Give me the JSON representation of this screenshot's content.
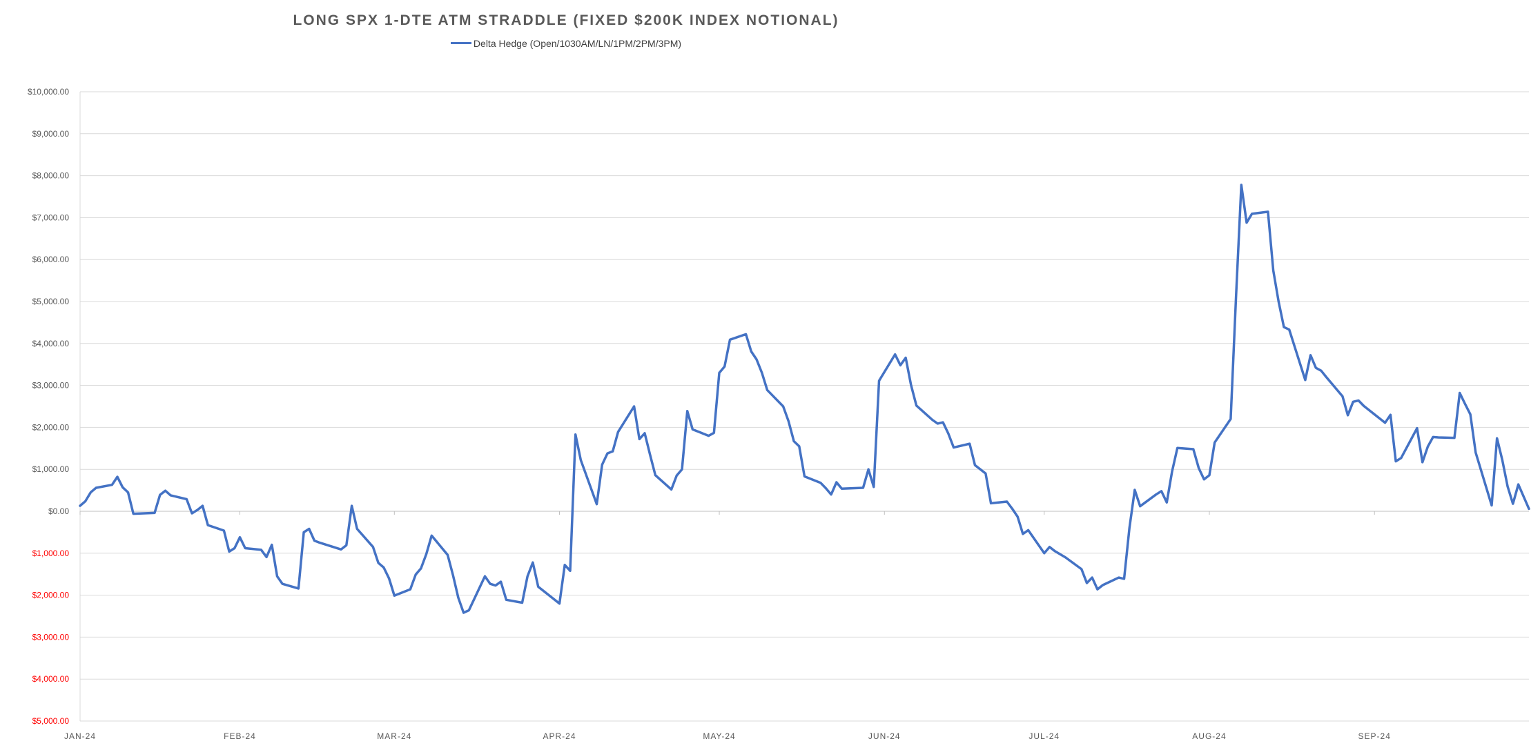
{
  "chart_data": {
    "type": "line",
    "title": "LONG SPX 1-DTE ATM STRADDLE (FIXED $200K INDEX NOTIONAL)",
    "legend_position": "top",
    "grid": true,
    "ylim": [
      -5000,
      10000
    ],
    "xlim": [
      "2024-01-02",
      "2024-09-30"
    ],
    "y_ticks": [
      10000,
      9000,
      8000,
      7000,
      6000,
      5000,
      4000,
      3000,
      2000,
      1000,
      0,
      -1000,
      -2000,
      -3000,
      -4000,
      -5000
    ],
    "y_tick_labels": [
      "$10,000.00",
      "$9,000.00",
      "$8,000.00",
      "$7,000.00",
      "$6,000.00",
      "$5,000.00",
      "$4,000.00",
      "$3,000.00",
      "$2,000.00",
      "$1,000.00",
      "$0.00",
      "$1,000.00",
      "$2,000.00",
      "$3,000.00",
      "$4,000.00",
      "$5,000.00"
    ],
    "positive_tick_color": "#595959",
    "negative_tick_color": "#FF0000",
    "x_ticks": [
      {
        "label": "JAN-24",
        "date": "2024-01-02"
      },
      {
        "label": "FEB-24",
        "date": "2024-02-01"
      },
      {
        "label": "MAR-24",
        "date": "2024-03-01"
      },
      {
        "label": "APR-24",
        "date": "2024-04-01"
      },
      {
        "label": "MAY-24",
        "date": "2024-05-01"
      },
      {
        "label": "JUN-24",
        "date": "2024-06-01"
      },
      {
        "label": "JUL-24",
        "date": "2024-07-01"
      },
      {
        "label": "AUG-24",
        "date": "2024-08-01"
      },
      {
        "label": "SEP-24",
        "date": "2024-09-01"
      }
    ],
    "series": [
      {
        "name": "Delta Hedge (Open/1030AM/LN/1PM/2PM/3PM)",
        "color": "#4472C4",
        "points": [
          [
            "2024-01-02",
            130
          ],
          [
            "2024-01-03",
            240
          ],
          [
            "2024-01-04",
            450
          ],
          [
            "2024-01-05",
            560
          ],
          [
            "2024-01-08",
            630
          ],
          [
            "2024-01-09",
            820
          ],
          [
            "2024-01-10",
            570
          ],
          [
            "2024-01-11",
            450
          ],
          [
            "2024-01-12",
            -60
          ],
          [
            "2024-01-16",
            -40
          ],
          [
            "2024-01-17",
            390
          ],
          [
            "2024-01-18",
            490
          ],
          [
            "2024-01-19",
            380
          ],
          [
            "2024-01-22",
            290
          ],
          [
            "2024-01-23",
            -50
          ],
          [
            "2024-01-24",
            30
          ],
          [
            "2024-01-25",
            130
          ],
          [
            "2024-01-26",
            -330
          ],
          [
            "2024-01-29",
            -460
          ],
          [
            "2024-01-30",
            -960
          ],
          [
            "2024-01-31",
            -880
          ],
          [
            "2024-02-01",
            -620
          ],
          [
            "2024-02-02",
            -880
          ],
          [
            "2024-02-05",
            -920
          ],
          [
            "2024-02-06",
            -1090
          ],
          [
            "2024-02-07",
            -800
          ],
          [
            "2024-02-08",
            -1550
          ],
          [
            "2024-02-09",
            -1730
          ],
          [
            "2024-02-12",
            -1840
          ],
          [
            "2024-02-13",
            -500
          ],
          [
            "2024-02-14",
            -420
          ],
          [
            "2024-02-15",
            -700
          ],
          [
            "2024-02-16",
            -750
          ],
          [
            "2024-02-20",
            -910
          ],
          [
            "2024-02-21",
            -810
          ],
          [
            "2024-02-22",
            130
          ],
          [
            "2024-02-23",
            -420
          ],
          [
            "2024-02-26",
            -850
          ],
          [
            "2024-02-27",
            -1230
          ],
          [
            "2024-02-28",
            -1340
          ],
          [
            "2024-02-29",
            -1600
          ],
          [
            "2024-03-01",
            -2010
          ],
          [
            "2024-03-04",
            -1860
          ],
          [
            "2024-03-05",
            -1510
          ],
          [
            "2024-03-06",
            -1360
          ],
          [
            "2024-03-07",
            -1020
          ],
          [
            "2024-03-08",
            -580
          ],
          [
            "2024-03-11",
            -1040
          ],
          [
            "2024-03-12",
            -1520
          ],
          [
            "2024-03-13",
            -2060
          ],
          [
            "2024-03-14",
            -2420
          ],
          [
            "2024-03-15",
            -2360
          ],
          [
            "2024-03-18",
            -1550
          ],
          [
            "2024-03-19",
            -1730
          ],
          [
            "2024-03-20",
            -1770
          ],
          [
            "2024-03-21",
            -1680
          ],
          [
            "2024-03-22",
            -2110
          ],
          [
            "2024-03-25",
            -2180
          ],
          [
            "2024-03-26",
            -1550
          ],
          [
            "2024-03-27",
            -1220
          ],
          [
            "2024-03-28",
            -1800
          ],
          [
            "2024-04-01",
            -2200
          ],
          [
            "2024-04-02",
            -1280
          ],
          [
            "2024-04-03",
            -1420
          ],
          [
            "2024-04-04",
            1830
          ],
          [
            "2024-04-05",
            1220
          ],
          [
            "2024-04-08",
            170
          ],
          [
            "2024-04-09",
            1110
          ],
          [
            "2024-04-10",
            1380
          ],
          [
            "2024-04-11",
            1430
          ],
          [
            "2024-04-12",
            1890
          ],
          [
            "2024-04-15",
            2500
          ],
          [
            "2024-04-16",
            1720
          ],
          [
            "2024-04-17",
            1860
          ],
          [
            "2024-04-18",
            1350
          ],
          [
            "2024-04-19",
            860
          ],
          [
            "2024-04-22",
            520
          ],
          [
            "2024-04-23",
            850
          ],
          [
            "2024-04-24",
            1000
          ],
          [
            "2024-04-25",
            2390
          ],
          [
            "2024-04-26",
            1950
          ],
          [
            "2024-04-29",
            1800
          ],
          [
            "2024-04-30",
            1870
          ],
          [
            "2024-05-01",
            3300
          ],
          [
            "2024-05-02",
            3450
          ],
          [
            "2024-05-03",
            4090
          ],
          [
            "2024-05-06",
            4220
          ],
          [
            "2024-05-07",
            3810
          ],
          [
            "2024-05-08",
            3620
          ],
          [
            "2024-05-09",
            3300
          ],
          [
            "2024-05-10",
            2890
          ],
          [
            "2024-05-13",
            2500
          ],
          [
            "2024-05-14",
            2150
          ],
          [
            "2024-05-15",
            1670
          ],
          [
            "2024-05-16",
            1550
          ],
          [
            "2024-05-17",
            830
          ],
          [
            "2024-05-20",
            680
          ],
          [
            "2024-05-21",
            550
          ],
          [
            "2024-05-22",
            400
          ],
          [
            "2024-05-23",
            690
          ],
          [
            "2024-05-24",
            540
          ],
          [
            "2024-05-28",
            560
          ],
          [
            "2024-05-29",
            1000
          ],
          [
            "2024-05-30",
            580
          ],
          [
            "2024-05-31",
            3110
          ],
          [
            "2024-06-03",
            3740
          ],
          [
            "2024-06-04",
            3480
          ],
          [
            "2024-06-05",
            3660
          ],
          [
            "2024-06-06",
            3010
          ],
          [
            "2024-06-07",
            2520
          ],
          [
            "2024-06-10",
            2180
          ],
          [
            "2024-06-11",
            2090
          ],
          [
            "2024-06-12",
            2120
          ],
          [
            "2024-06-13",
            1850
          ],
          [
            "2024-06-14",
            1520
          ],
          [
            "2024-06-17",
            1610
          ],
          [
            "2024-06-18",
            1100
          ],
          [
            "2024-06-20",
            900
          ],
          [
            "2024-06-21",
            190
          ],
          [
            "2024-06-24",
            230
          ],
          [
            "2024-06-25",
            60
          ],
          [
            "2024-06-26",
            -130
          ],
          [
            "2024-06-27",
            -540
          ],
          [
            "2024-06-28",
            -450
          ],
          [
            "2024-07-01",
            -1000
          ],
          [
            "2024-07-02",
            -850
          ],
          [
            "2024-07-03",
            -950
          ],
          [
            "2024-07-05",
            -1100
          ],
          [
            "2024-07-08",
            -1380
          ],
          [
            "2024-07-09",
            -1710
          ],
          [
            "2024-07-10",
            -1580
          ],
          [
            "2024-07-11",
            -1860
          ],
          [
            "2024-07-12",
            -1760
          ],
          [
            "2024-07-15",
            -1580
          ],
          [
            "2024-07-16",
            -1610
          ],
          [
            "2024-07-17",
            -400
          ],
          [
            "2024-07-18",
            510
          ],
          [
            "2024-07-19",
            120
          ],
          [
            "2024-07-22",
            400
          ],
          [
            "2024-07-23",
            480
          ],
          [
            "2024-07-24",
            210
          ],
          [
            "2024-07-25",
            950
          ],
          [
            "2024-07-26",
            1510
          ],
          [
            "2024-07-29",
            1480
          ],
          [
            "2024-07-30",
            1030
          ],
          [
            "2024-07-31",
            760
          ],
          [
            "2024-08-01",
            860
          ],
          [
            "2024-08-02",
            1640
          ],
          [
            "2024-08-05",
            2200
          ],
          [
            "2024-08-06",
            5100
          ],
          [
            "2024-08-07",
            7780
          ],
          [
            "2024-08-08",
            6880
          ],
          [
            "2024-08-09",
            7090
          ],
          [
            "2024-08-12",
            7140
          ],
          [
            "2024-08-13",
            5740
          ],
          [
            "2024-08-14",
            5000
          ],
          [
            "2024-08-15",
            4390
          ],
          [
            "2024-08-16",
            4330
          ],
          [
            "2024-08-19",
            3130
          ],
          [
            "2024-08-20",
            3720
          ],
          [
            "2024-08-21",
            3420
          ],
          [
            "2024-08-22",
            3350
          ],
          [
            "2024-08-23",
            3190
          ],
          [
            "2024-08-26",
            2740
          ],
          [
            "2024-08-27",
            2290
          ],
          [
            "2024-08-28",
            2610
          ],
          [
            "2024-08-29",
            2640
          ],
          [
            "2024-08-30",
            2510
          ],
          [
            "2024-09-03",
            2110
          ],
          [
            "2024-09-04",
            2300
          ],
          [
            "2024-09-05",
            1190
          ],
          [
            "2024-09-06",
            1270
          ],
          [
            "2024-09-09",
            1980
          ],
          [
            "2024-09-10",
            1170
          ],
          [
            "2024-09-11",
            1540
          ],
          [
            "2024-09-12",
            1770
          ],
          [
            "2024-09-13",
            1760
          ],
          [
            "2024-09-16",
            1750
          ],
          [
            "2024-09-17",
            2820
          ],
          [
            "2024-09-18",
            2560
          ],
          [
            "2024-09-19",
            2310
          ],
          [
            "2024-09-20",
            1400
          ],
          [
            "2024-09-23",
            140
          ],
          [
            "2024-09-24",
            1740
          ],
          [
            "2024-09-25",
            1220
          ],
          [
            "2024-09-26",
            590
          ],
          [
            "2024-09-27",
            180
          ],
          [
            "2024-09-28",
            640
          ],
          [
            "2024-09-30",
            60
          ]
        ]
      }
    ]
  }
}
